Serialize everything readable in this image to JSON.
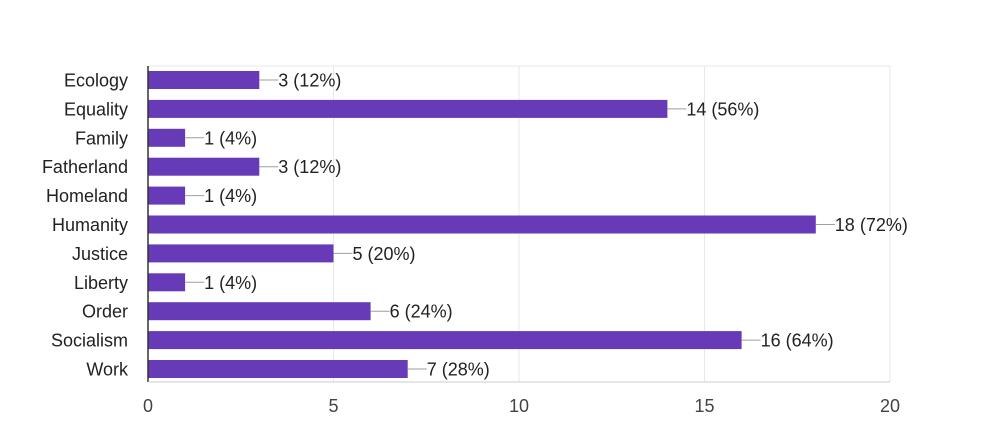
{
  "chart_data": {
    "type": "bar",
    "orientation": "horizontal",
    "title": "",
    "xlabel": "",
    "ylabel": "",
    "categories": [
      "Ecology",
      "Equality",
      "Family",
      "Fatherland",
      "Homeland",
      "Humanity",
      "Justice",
      "Liberty",
      "Order",
      "Socialism",
      "Work"
    ],
    "values": [
      3,
      14,
      1,
      3,
      1,
      18,
      5,
      1,
      6,
      16,
      7
    ],
    "data_labels": [
      "3 (12%)",
      "14 (56%)",
      "1 (4%)",
      "3 (12%)",
      "1 (4%)",
      "18 (72%)",
      "5 (20%)",
      "1 (4%)",
      "6 (24%)",
      "16 (64%)",
      "7 (28%)"
    ],
    "xlim": [
      0,
      20
    ],
    "xticks": [
      0,
      5,
      10,
      15,
      20
    ],
    "xtick_labels": [
      "0",
      "5",
      "10",
      "15",
      "20"
    ],
    "grid": true,
    "legend": "none",
    "bar_color": "#673ab7",
    "gridline_color": "#e8e8e8",
    "axis_color": "#333333",
    "leader_line_color": "#9e9e9e"
  }
}
